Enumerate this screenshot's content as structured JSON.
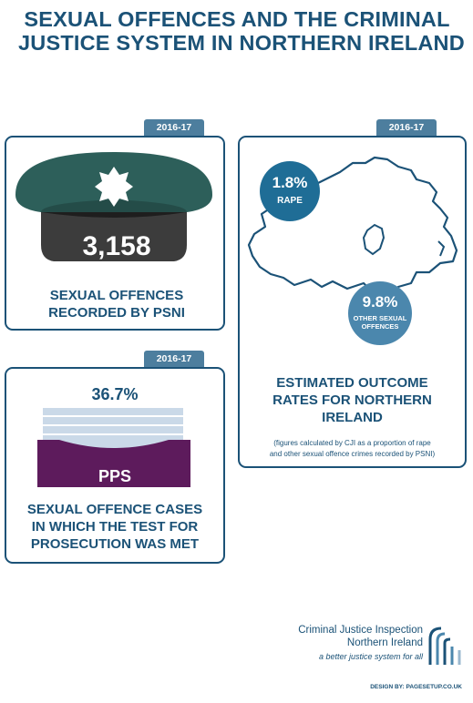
{
  "header": {
    "title_line1": "SEXUAL OFFENCES AND THE CRIMINAL",
    "title_line2": "JUSTICE SYSTEM IN NORTHERN IRELAND"
  },
  "psni_card": {
    "year": "2016-17",
    "value": "3,158",
    "label_line1": "SEXUAL OFFENCES",
    "label_line2": "RECORDED BY PSNI"
  },
  "outcome_card": {
    "year": "2016-17",
    "rape_value": "1.8%",
    "rape_label": "RAPE",
    "other_value": "9.8%",
    "other_label_line1": "OTHER SEXUAL",
    "other_label_line2": "OFFENCES",
    "title_line1": "ESTIMATED OUTCOME",
    "title_line2": "RATES FOR NORTHERN",
    "title_line3": "IRELAND",
    "note_line1": "(figures calculated by CJI as a proportion of rape",
    "note_line2": "and other sexual offence crimes recorded by PSNI)"
  },
  "pps_card": {
    "year": "2016-17",
    "value": "36.7%",
    "tray_label": "PPS",
    "label_line1": "SEXUAL OFFENCE CASES",
    "label_line2": "IN WHICH THE TEST FOR",
    "label_line3": "PROSECUTION WAS MET"
  },
  "logo": {
    "line1": "Criminal Justice Inspection",
    "line2": "Northern Ireland",
    "tagline": "a better justice system for all"
  },
  "credit": "DESIGN BY: PAGESETUP.CO.UK",
  "colors": {
    "navy": "#1b5277",
    "tab_blue": "#4d7e9e",
    "badge_blue": "#1f6d96",
    "badge_light": "#4b87ad",
    "cap_green": "#2d5f5a",
    "cap_band": "#3c3c3c",
    "tray_purple": "#5d1b5c",
    "paper_blue": "#cad9e8"
  }
}
